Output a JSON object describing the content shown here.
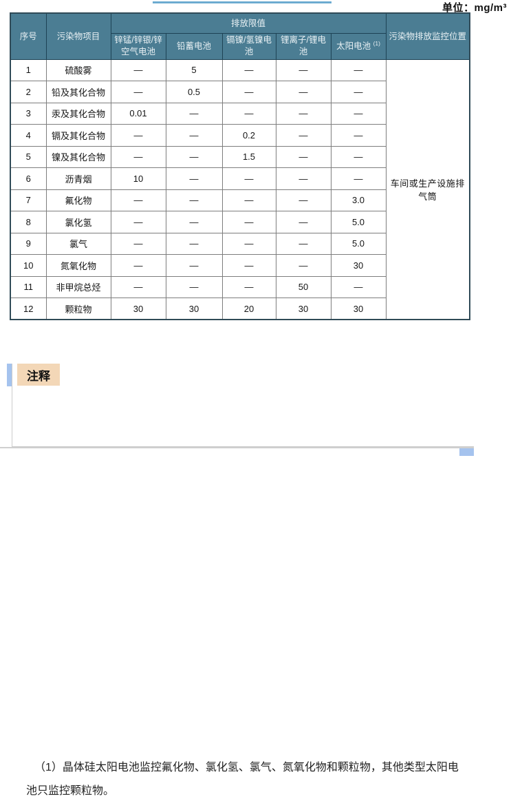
{
  "page": {
    "unit_label": "单位：mg/m³",
    "colors": {
      "header_bg": "#4b7d93",
      "header_border": "#1d4254",
      "header_text": "#e9f1f4",
      "cell_border": "#7d7d7d",
      "accent_blue": "#a5c3ee",
      "top_line_blue": "#6cabd0",
      "note_label_bg": "#f3d7b7",
      "note_border": "#cccccc"
    }
  },
  "table": {
    "header": {
      "no": "序号",
      "pollutant": "污染物项目",
      "limit_group": "排放限值",
      "monitor": "污染物排放监控位置",
      "battery_types": [
        {
          "label": "锌锰/锌银/锌空气电池",
          "sup": ""
        },
        {
          "label": "铅蓄电池",
          "sup": ""
        },
        {
          "label": "镉镍/氢镍电池",
          "sup": ""
        },
        {
          "label": "锂离子/锂电池",
          "sup": ""
        },
        {
          "label": "太阳电池",
          "sup": "(1)"
        }
      ]
    },
    "rows": [
      {
        "no": "1",
        "pollutant": "硫酸雾",
        "values": [
          "—",
          "5",
          "—",
          "—",
          "—"
        ]
      },
      {
        "no": "2",
        "pollutant": "铅及其化合物",
        "values": [
          "—",
          "0.5",
          "—",
          "—",
          "—"
        ]
      },
      {
        "no": "3",
        "pollutant": "汞及其化合物",
        "values": [
          "0.01",
          "—",
          "—",
          "—",
          "—"
        ]
      },
      {
        "no": "4",
        "pollutant": "镉及其化合物",
        "values": [
          "—",
          "—",
          "0.2",
          "—",
          "—"
        ]
      },
      {
        "no": "5",
        "pollutant": "镍及其化合物",
        "values": [
          "—",
          "—",
          "1.5",
          "—",
          "—"
        ]
      },
      {
        "no": "6",
        "pollutant": "沥青烟",
        "values": [
          "10",
          "—",
          "—",
          "—",
          "—"
        ]
      },
      {
        "no": "7",
        "pollutant": "氟化物",
        "values": [
          "—",
          "—",
          "—",
          "—",
          "3.0"
        ]
      },
      {
        "no": "8",
        "pollutant": "氯化氢",
        "values": [
          "—",
          "—",
          "—",
          "—",
          "5.0"
        ]
      },
      {
        "no": "9",
        "pollutant": "氯气",
        "values": [
          "—",
          "—",
          "—",
          "—",
          "5.0"
        ]
      },
      {
        "no": "10",
        "pollutant": "氮氧化物",
        "values": [
          "—",
          "—",
          "—",
          "—",
          "30"
        ]
      },
      {
        "no": "11",
        "pollutant": "非甲烷总烃",
        "values": [
          "—",
          "—",
          "—",
          "50",
          "—"
        ]
      },
      {
        "no": "12",
        "pollutant": "颗粒物",
        "values": [
          "30",
          "30",
          "20",
          "30",
          "30"
        ]
      }
    ],
    "monitor_location": "车间或生产设施排气筒"
  },
  "note": {
    "label": "注释",
    "text": "（1）晶体硅太阳电池监控氟化物、氯化氢、氯气、氮氧化物和颗粒物，其他类型太阳电池只监控颗粒物。"
  }
}
